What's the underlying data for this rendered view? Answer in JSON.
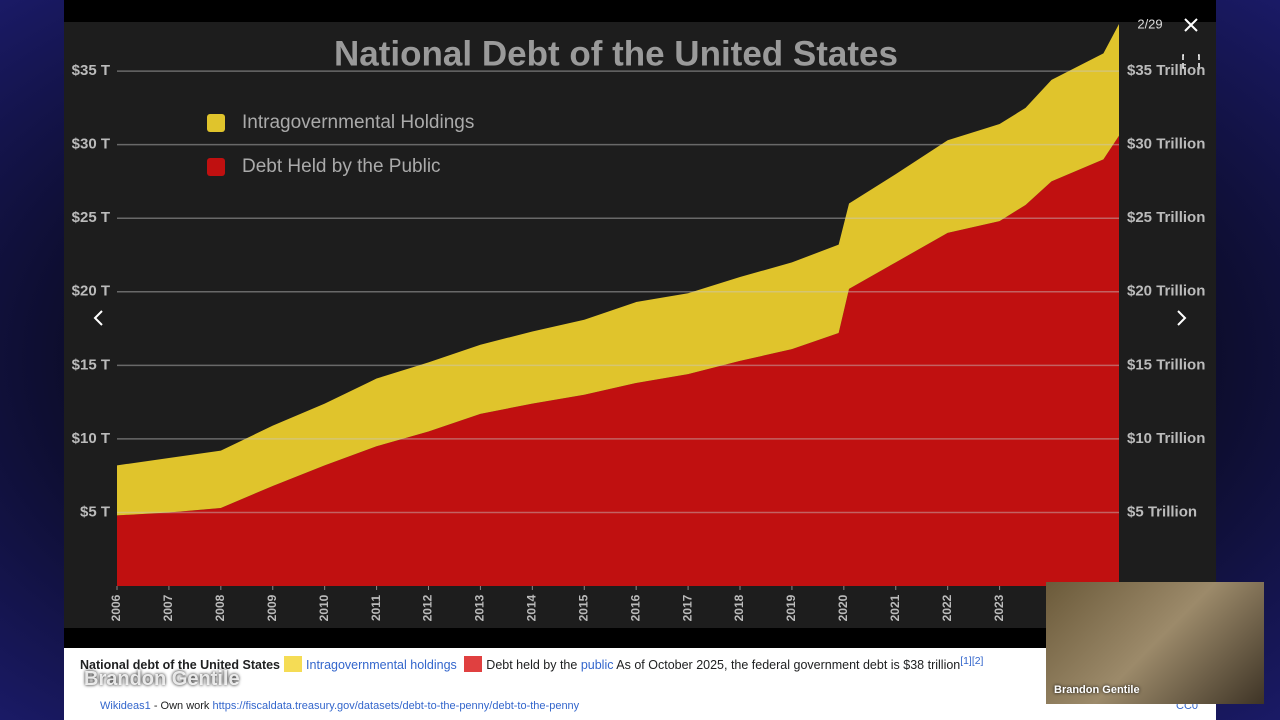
{
  "chart_data": {
    "type": "stacked-area",
    "title": "National Debt of the United States",
    "x": [
      2006,
      2007,
      2008,
      2009,
      2010,
      2011,
      2012,
      2013,
      2014,
      2015,
      2016,
      2017,
      2018,
      2019,
      2019.9,
      2020.1,
      2021,
      2022,
      2023,
      2023.5,
      2024,
      2025,
      2025.3
    ],
    "xlim": [
      2006,
      2025.3
    ],
    "xticks": [
      2006,
      2007,
      2008,
      2009,
      2010,
      2011,
      2012,
      2013,
      2014,
      2015,
      2016,
      2017,
      2018,
      2019,
      2020,
      2021,
      2022,
      2023
    ],
    "ylim": [
      0,
      38.2
    ],
    "yticks": [
      {
        "value": 5,
        "label": "$5 T"
      },
      {
        "value": 10,
        "label": "$10 T"
      },
      {
        "value": 15,
        "label": "$15 T"
      },
      {
        "value": 20,
        "label": "$20 T"
      },
      {
        "value": 25,
        "label": "$25 T"
      },
      {
        "value": 30,
        "label": "$30 T"
      },
      {
        "value": 35,
        "label": "$35 T"
      }
    ],
    "y2lim": [
      0,
      38.2
    ],
    "y2ticks": [
      {
        "value": 5,
        "label": "$5 Trillion"
      },
      {
        "value": 10,
        "label": "$10 Trillion"
      },
      {
        "value": 15,
        "label": "$15 Trillion"
      },
      {
        "value": 20,
        "label": "$20 Trillion"
      },
      {
        "value": 25,
        "label": "$25 Trillion"
      },
      {
        "value": 30,
        "label": "$30 Trillion"
      },
      {
        "value": 35,
        "label": "$35 Trillion"
      }
    ],
    "grid": true,
    "series": [
      {
        "name": "Intragovernmental Holdings",
        "color": "#e0c42c",
        "values": [
          3.4,
          3.7,
          3.9,
          4.1,
          4.2,
          4.6,
          4.7,
          4.7,
          4.9,
          5.1,
          5.5,
          5.5,
          5.7,
          5.9,
          6.0,
          5.8,
          6.0,
          6.3,
          6.6,
          6.6,
          6.9,
          7.2,
          7.6
        ]
      },
      {
        "name": "Debt Held by the Public",
        "color": "#c01010",
        "values": [
          4.8,
          5.0,
          5.3,
          6.8,
          8.2,
          9.5,
          10.5,
          11.7,
          12.4,
          13.0,
          13.8,
          14.4,
          15.3,
          16.1,
          17.2,
          20.2,
          22.0,
          24.0,
          24.8,
          25.9,
          27.5,
          29.0,
          30.6
        ]
      }
    ]
  },
  "viewer": {
    "counter": "2/29"
  },
  "caption": {
    "title": "National debt of the United States",
    "item1": "Intragovernmental holdings",
    "item2_text": "Debt held by the",
    "item2_link": "public",
    "note": "As of October 2025, the federal government debt is $38 trillion",
    "refs": "[1][2]",
    "author": "Wikideas1",
    "source": "- Own work",
    "url": "https://fiscaldata.treasury.gov/datasets/debt-to-the-penny/debt-to-the-penny",
    "license": "CC0"
  },
  "overlay": {
    "watermark": "Brandon Gentile",
    "webcam_name": "Brandon Gentile"
  }
}
